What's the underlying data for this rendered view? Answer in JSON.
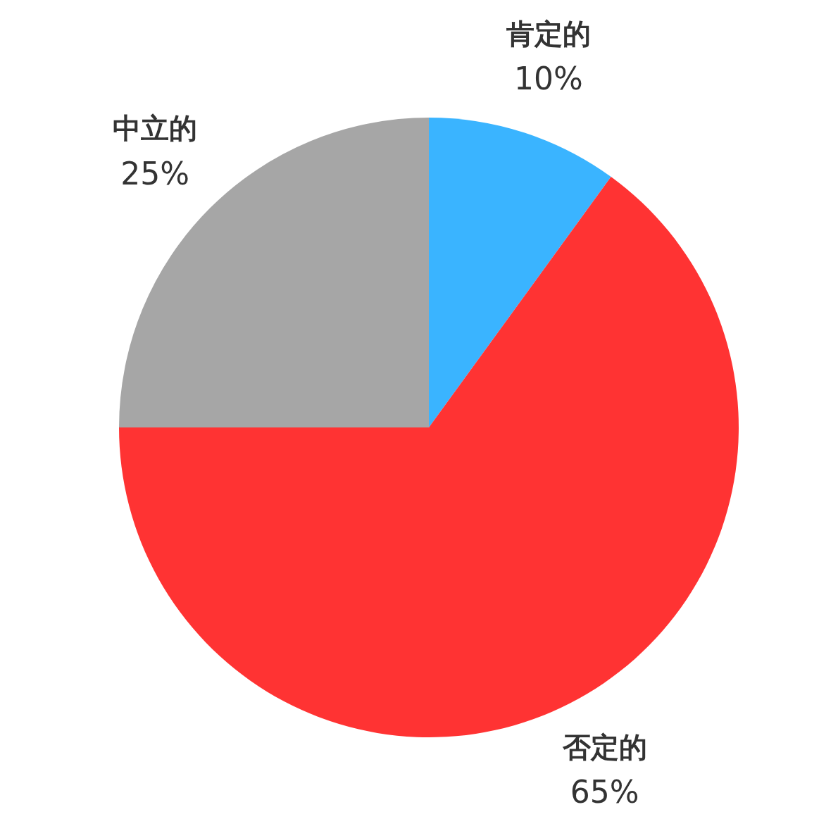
{
  "chart_data": {
    "type": "pie",
    "categories": [
      "肯定的",
      "否定的",
      "中立的"
    ],
    "values": [
      10,
      65,
      25
    ],
    "colors": [
      "#3ab4ff",
      "#ff3333",
      "#a6a6a6"
    ],
    "value_labels": [
      "10%",
      "65%",
      "25%"
    ],
    "legend": false
  }
}
